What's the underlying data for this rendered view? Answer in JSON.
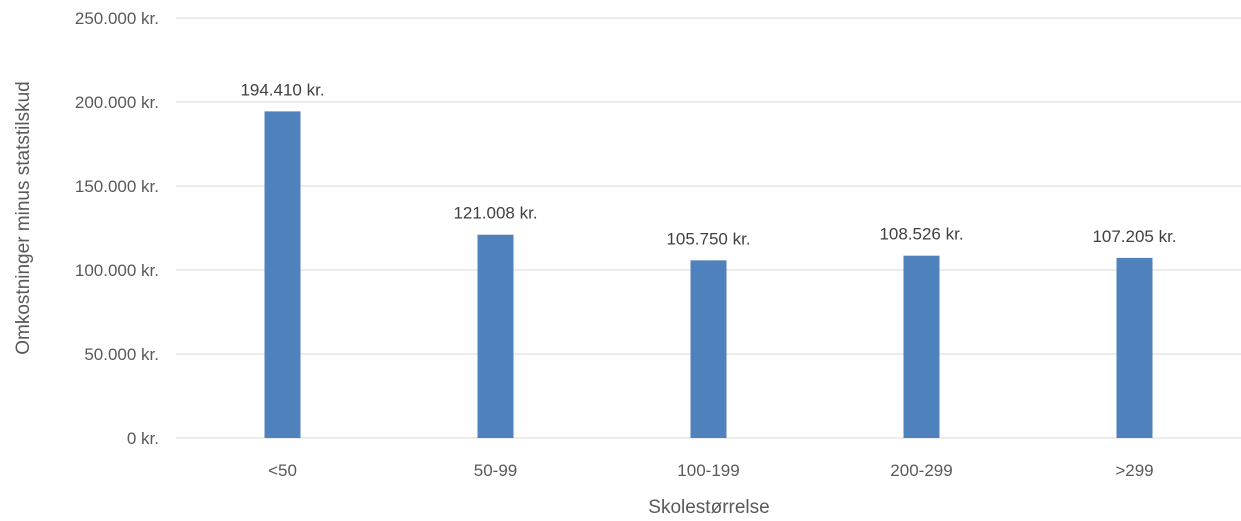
{
  "chart_data": {
    "type": "bar",
    "xlabel": "Skolestørrelse",
    "ylabel": "Omkostninger minus statstilskud",
    "categories": [
      "<50",
      "50-99",
      "100-199",
      "200-299",
      ">299"
    ],
    "values": [
      194410,
      121008,
      105750,
      108526,
      107205
    ],
    "data_labels": [
      "194.410 kr.",
      "121.008 kr.",
      "105.750 kr.",
      "108.526 kr.",
      "107.205 kr."
    ],
    "ylim": [
      0,
      250000
    ],
    "y_ticks": [
      0,
      50000,
      100000,
      150000,
      200000,
      250000
    ],
    "y_tick_labels": [
      "0 kr.",
      "50.000 kr.",
      "100.000 kr.",
      "150.000 kr.",
      "200.000 kr.",
      "250.000 kr."
    ],
    "grid": true,
    "legend": "none",
    "bar_color": "#4f81bd"
  }
}
